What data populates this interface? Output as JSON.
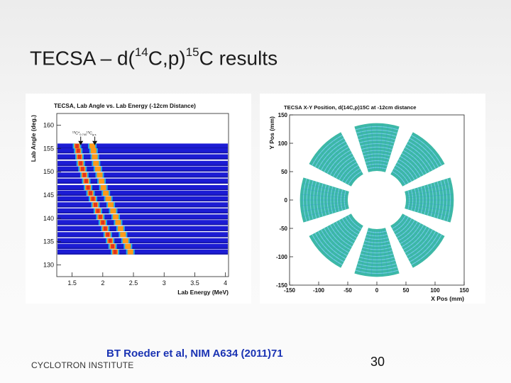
{
  "slide": {
    "title_main": "TECSA – d(",
    "title_sup1": "14",
    "title_mid": "C,p)",
    "title_sup2": "15",
    "title_end": "C results",
    "citation": "BT Roeder et al, NIM A634 (2011)71",
    "institute": "CYCLOTRON INSTITUTE",
    "page_number": "30"
  },
  "chart_data": [
    {
      "type": "heatmap",
      "title": "TECSA, Lab Angle vs. Lab Energy (-12cm Distance)",
      "xlabel": "Lab Energy (MeV)",
      "ylabel": "Lab Angle (deg.)",
      "xlim": [
        1.25,
        4.05
      ],
      "ylim": [
        127.5,
        162.5
      ],
      "xticks": [
        1.5,
        2,
        2.5,
        3,
        3.5,
        4
      ],
      "yticks": [
        130,
        135,
        140,
        145,
        150,
        155,
        160
      ],
      "annotations": [
        {
          "label": "15C*0.740",
          "x": 1.64,
          "y": 158
        },
        {
          "label": "15Cg.s.",
          "x": 1.87,
          "y": 158
        }
      ],
      "bands_angles": [
        155.5,
        154.5,
        153.2,
        151.8,
        150.6,
        149.3,
        148.0,
        146.6,
        145.4,
        144.2,
        142.9,
        141.6,
        140.3,
        139.1,
        137.8,
        136.5,
        135.2,
        134.0,
        132.8
      ],
      "series": [
        {
          "name": "15C*0.740",
          "x": [
            1.58,
            1.6,
            1.62,
            1.64,
            1.67,
            1.7,
            1.73,
            1.76,
            1.8,
            1.84,
            1.88,
            1.92,
            1.96,
            2.0,
            2.04,
            2.08,
            2.12,
            2.16,
            2.2
          ]
        },
        {
          "name": "15Cg.s.",
          "x": [
            1.83,
            1.85,
            1.87,
            1.89,
            1.92,
            1.95,
            1.98,
            2.01,
            2.05,
            2.09,
            2.13,
            2.17,
            2.21,
            2.25,
            2.29,
            2.33,
            2.37,
            2.41,
            2.45
          ]
        }
      ],
      "colors": {
        "background": "#1c1cd4",
        "band_dark": "#1414a8",
        "peak_hot": "#e4321e",
        "peak_warm": "#ff9a1a",
        "peak_cool": "#22c8ea"
      }
    },
    {
      "type": "scatter",
      "title": "TECSA X-Y Position, d(14C,p)15C at -12cm distance",
      "xlabel": "X Pos (mm)",
      "ylabel": "Y Pos (mm)",
      "xlim": [
        -150,
        150
      ],
      "ylim": [
        -150,
        150
      ],
      "xticks": [
        -150,
        -100,
        -50,
        0,
        50,
        100,
        150
      ],
      "yticks": [
        -150,
        -100,
        -50,
        0,
        50,
        100,
        150
      ],
      "detector_count": 8,
      "inner_radius": 50,
      "outer_radius": 132,
      "colors": {
        "fill": "#3db8a6",
        "strip": "#7ad0f0",
        "speckle": "#2a8cd8"
      }
    }
  ]
}
